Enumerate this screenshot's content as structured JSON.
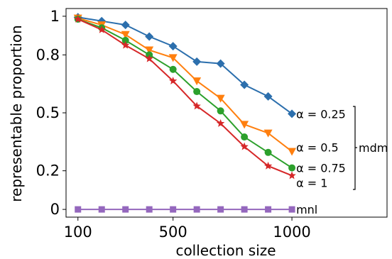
{
  "chart_data": {
    "type": "line",
    "xlabel": "collection size",
    "ylabel": "representable proportion",
    "xlim": [
      50,
      1400
    ],
    "ylim": [
      -0.04,
      1.04
    ],
    "grid": false,
    "x_ticks": [
      {
        "value": 100,
        "label": "100"
      },
      {
        "value": 500,
        "label": "500"
      },
      {
        "value": 1000,
        "label": "1000"
      }
    ],
    "y_ticks": [
      {
        "value": 0,
        "label": "0"
      },
      {
        "value": 0.2,
        "label": "0.2"
      },
      {
        "value": 0.5,
        "label": "0.5"
      },
      {
        "value": 0.8,
        "label": "0.8"
      },
      {
        "value": 1,
        "label": "1"
      }
    ],
    "x": [
      100,
      200,
      300,
      400,
      500,
      600,
      700,
      800,
      900,
      1000
    ],
    "series": [
      {
        "name": "α = 0.25",
        "color": "#2c6fad",
        "marker": "diamond",
        "values": [
          0.995,
          0.975,
          0.955,
          0.895,
          0.845,
          0.765,
          0.755,
          0.645,
          0.585,
          0.495
        ]
      },
      {
        "name": "α = 0.5",
        "color": "#ff7f0e",
        "marker": "triangle-down",
        "values": [
          0.99,
          0.955,
          0.905,
          0.825,
          0.785,
          0.665,
          0.575,
          0.44,
          0.395,
          0.3
        ]
      },
      {
        "name": "α = 0.75",
        "color": "#2ca02c",
        "marker": "circle",
        "values": [
          0.985,
          0.94,
          0.875,
          0.8,
          0.725,
          0.61,
          0.51,
          0.375,
          0.295,
          0.215
        ]
      },
      {
        "name": "α = 1",
        "color": "#d62728",
        "marker": "star",
        "values": [
          0.985,
          0.93,
          0.85,
          0.78,
          0.665,
          0.535,
          0.445,
          0.325,
          0.225,
          0.175
        ]
      },
      {
        "name": "mnl",
        "color": "#9467bd",
        "marker": "square",
        "values": [
          0,
          0,
          0,
          0,
          0,
          0,
          0,
          0,
          0,
          0
        ]
      }
    ],
    "annotations": [
      {
        "text": "α = 0.25",
        "series_index": 0
      },
      {
        "text": "α = 0.5",
        "series_index": 1
      },
      {
        "text": "α = 0.75",
        "series_index": 2
      },
      {
        "text": "α = 1",
        "series_index": 3
      },
      {
        "text": "mnl",
        "series_index": 4
      }
    ],
    "group_label": "mdm"
  }
}
